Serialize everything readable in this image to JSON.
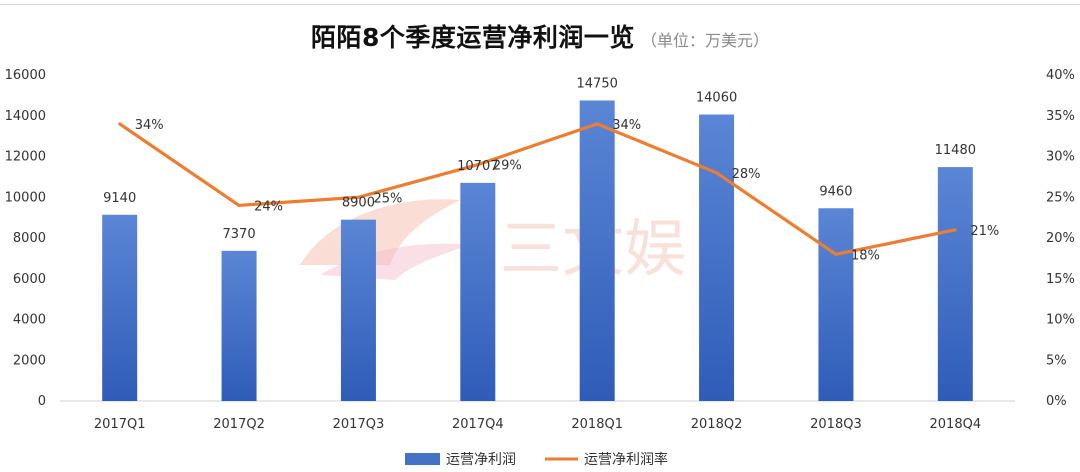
{
  "chart_data": {
    "type": "bar",
    "title": "陌陌8个季度运营净利润一览",
    "subtitle": "（单位：万美元）",
    "categories": [
      "2017Q1",
      "2017Q2",
      "2017Q3",
      "2017Q4",
      "2018Q1",
      "2018Q2",
      "2018Q3",
      "2018Q4"
    ],
    "series": [
      {
        "name": "运营净利润",
        "type": "bar",
        "axis": "left",
        "color": "#4472c4",
        "values": [
          9140,
          7370,
          8900,
          10707,
          14750,
          14060,
          9460,
          11480
        ]
      },
      {
        "name": "运营净利润率",
        "type": "line",
        "axis": "right",
        "color": "#ed7d31",
        "values": [
          34,
          24,
          25,
          29,
          34,
          28,
          18,
          21
        ]
      }
    ],
    "left_axis": {
      "min": 0,
      "max": 16000,
      "ticks": [
        "0",
        "2000",
        "4000",
        "6000",
        "8000",
        "10000",
        "12000",
        "14000",
        "16000"
      ]
    },
    "right_axis": {
      "min": 0,
      "max": 40,
      "ticks": [
        "0%",
        "5%",
        "10%",
        "15%",
        "20%",
        "25%",
        "30%",
        "35%",
        "40%"
      ]
    },
    "bar_labels": [
      "9140",
      "7370",
      "8900",
      "10707",
      "14750",
      "14060",
      "9460",
      "11480"
    ],
    "line_labels": [
      "34%",
      "24%",
      "25%",
      "29%",
      "34%",
      "28%",
      "18%",
      "21%"
    ],
    "legend_position": "bottom",
    "watermark": "三文娱",
    "grid": false
  }
}
